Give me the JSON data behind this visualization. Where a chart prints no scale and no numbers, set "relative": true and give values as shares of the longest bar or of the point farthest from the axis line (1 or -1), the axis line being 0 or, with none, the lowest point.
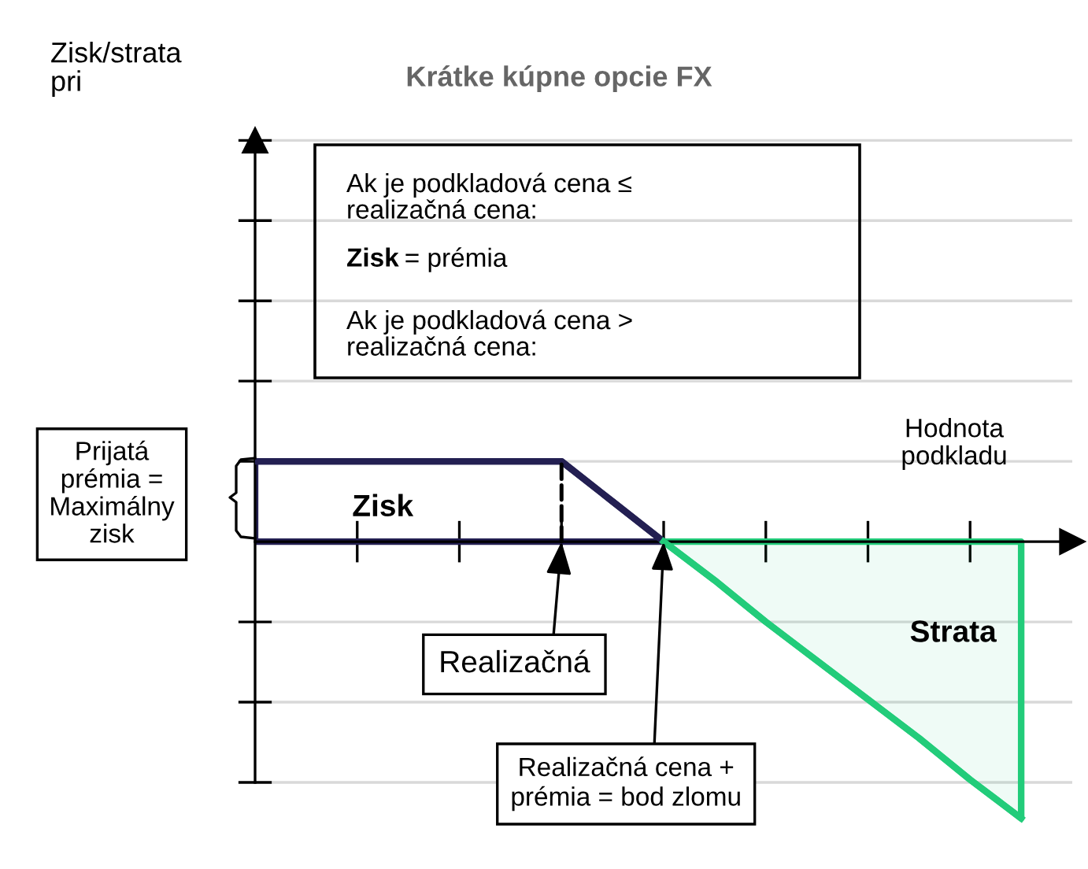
{
  "chart_data": {
    "type": "area",
    "title": "Krátke kúpne opcie FX",
    "xlabel": "Hodnota\npodkladu",
    "relative": true,
    "categories": [
      null,
      null,
      null,
      null,
      null,
      null,
      null,
      null,
      null,
      null,
      null,
      null,
      null,
      null,
      null,
      null
    ],
    "series": [
      {
        "name": "Zisk",
        "type": "line",
        "color": "#231f52",
        "values": [
          0.29,
          0.29,
          0.29,
          0.29,
          0.29,
          0.29,
          0.29,
          0.145,
          0,
          null,
          null,
          null,
          null,
          null,
          null,
          null
        ]
      },
      {
        "name": "Strata",
        "color": "#22cc7a",
        "values": [
          null,
          null,
          null,
          null,
          null,
          null,
          null,
          null,
          0,
          -0.14,
          -0.29,
          -0.43,
          -0.57,
          -0.71,
          -0.86,
          -1
        ]
      }
    ],
    "ref_lines": [
      {
        "axis": "y",
        "value": -0.87,
        "color": "#d9d9d9"
      },
      {
        "axis": "y",
        "value": -0.58,
        "color": "#d9d9d9"
      },
      {
        "axis": "y",
        "value": -0.29,
        "color": "#d9d9d9"
      },
      {
        "axis": "y",
        "value": 0.29,
        "color": "#d9d9d9"
      },
      {
        "axis": "y",
        "value": 0.58,
        "color": "#d9d9d9"
      },
      {
        "axis": "y",
        "value": 0.87,
        "color": "#d9d9d9"
      },
      {
        "axis": "y",
        "value": 1.16,
        "color": "#d9d9d9"
      },
      {
        "axis": "y",
        "value": 1.45,
        "color": "#d9d9d9"
      }
    ],
    "legend": false,
    "annotations": [
      "Ak je podkladová cena ≤\nrealizačná cena:",
      "Zisk = prémia",
      "Ak je podkladová cena >\nrealizačná cena:",
      "Prijatá\nprémia =\nMaximálny\nzisk",
      "Realizačná",
      "Realizačná cena +\nprémia = bod zlomu",
      "Zisk/strata\npri"
    ]
  }
}
